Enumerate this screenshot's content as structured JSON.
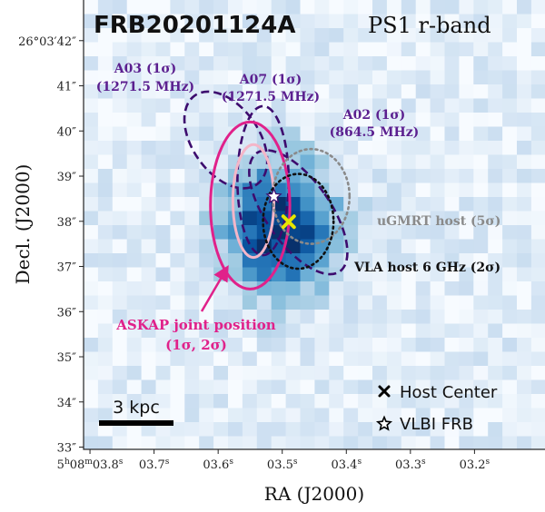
{
  "chart_data": {
    "type": "heatmap",
    "title": "FRB20201124A",
    "subtitle": "PS1 r-band",
    "xlabel": "RA (J2000)",
    "ylabel": "Decl. (J2000)",
    "x_ticks": [
      {
        "label": "5h08m03.8s",
        "value": 3.8
      },
      {
        "label": "03.7s",
        "value": 3.7
      },
      {
        "label": "03.6s",
        "value": 3.6
      },
      {
        "label": "03.5s",
        "value": 3.5
      },
      {
        "label": "03.4s",
        "value": 3.4
      },
      {
        "label": "03.3s",
        "value": 3.3
      },
      {
        "label": "03.2s",
        "value": 3.2
      }
    ],
    "y_ticks": [
      {
        "label": "26°03′42″",
        "value": 42
      },
      {
        "label": "41″",
        "value": 41
      },
      {
        "label": "40″",
        "value": 40
      },
      {
        "label": "39″",
        "value": 39
      },
      {
        "label": "38″",
        "value": 38
      },
      {
        "label": "37″",
        "value": 37
      },
      {
        "label": "36″",
        "value": 36
      },
      {
        "label": "35″",
        "value": 35
      },
      {
        "label": "34″",
        "value": 34
      },
      {
        "label": "33″",
        "value": 33
      }
    ],
    "xlim": [
      3.81,
      3.09
    ],
    "ylim": [
      32.95,
      42.9
    ],
    "grid": false,
    "image": {
      "colormap": "Blues",
      "peak_ra": 3.505,
      "peak_dec": 37.85,
      "sigma_ra": 0.06,
      "sigma_dec": 1.0
    },
    "regions": [
      {
        "name": "A03",
        "label_lines": [
          "A03 (1σ)",
          "(1271.5 MHz)"
        ],
        "label_color": "#5b1f8f",
        "style": "dashed",
        "color": "#3d0c6e",
        "ra": 3.588,
        "dec": 39.8,
        "a_ra": 0.052,
        "b_dec": 1.2,
        "tilt_deg": 35
      },
      {
        "name": "A07",
        "label_lines": [
          "A07 (1σ)",
          "(1271.5 MHz)"
        ],
        "label_color": "#5b1f8f",
        "style": "dashed",
        "color": "#3d0c6e",
        "ra": 3.53,
        "dec": 38.9,
        "a_ra": 0.04,
        "b_dec": 1.65,
        "tilt_deg": 0
      },
      {
        "name": "A02",
        "label_lines": [
          "A02 (1σ)",
          "(864.5 MHz)"
        ],
        "label_color": "#5b1f8f",
        "style": "dashed",
        "color": "#3d0c6e",
        "ra": 3.475,
        "dec": 38.2,
        "a_ra": 0.05,
        "b_dec": 1.6,
        "tilt_deg": 35
      },
      {
        "name": "ASKAP joint 2σ",
        "style": "solid",
        "color": "#e0218a",
        "ra": 3.55,
        "dec": 38.35,
        "a_ra": 0.062,
        "b_dec": 1.85,
        "tilt_deg": 0
      },
      {
        "name": "ASKAP joint 1σ",
        "style": "solid",
        "color": "#f4b6c8",
        "ra": 3.545,
        "dec": 38.45,
        "a_ra": 0.032,
        "b_dec": 1.25,
        "tilt_deg": 0
      },
      {
        "name": "uGMRT host",
        "label": "uGMRT host (5σ)",
        "label_color": "#8a8a8a",
        "style": "dotted",
        "color": "#8a8a8a",
        "ra": 3.455,
        "dec": 38.55,
        "a_ra": 0.06,
        "b_dec": 1.05,
        "tilt_deg": 0
      },
      {
        "name": "VLA host 6 GHz",
        "label": "VLA host 6 GHz (2σ)",
        "label_color": "#111111",
        "style": "dotted",
        "color": "#111111",
        "ra": 3.475,
        "dec": 38.0,
        "a_ra": 0.055,
        "b_dec": 1.05,
        "tilt_deg": 0
      }
    ],
    "markers": [
      {
        "name": "Host Center",
        "symbol": "x",
        "color": "#e6e600",
        "ra": 3.49,
        "dec": 37.99
      },
      {
        "name": "VLBI FRB",
        "symbol": "star",
        "color": "#ffffff",
        "ra": 3.513,
        "dec": 38.55
      }
    ],
    "askap_annotation": {
      "lines": [
        "ASKAP joint position",
        "(1σ, 2σ)"
      ],
      "color": "#e0218a"
    },
    "scale_bar": {
      "label": "3 kpc"
    },
    "legend": {
      "placement": "lower-right",
      "items": [
        {
          "symbol": "x",
          "label": "Host Center"
        },
        {
          "symbol": "star",
          "label": "VLBI FRB"
        }
      ]
    }
  }
}
